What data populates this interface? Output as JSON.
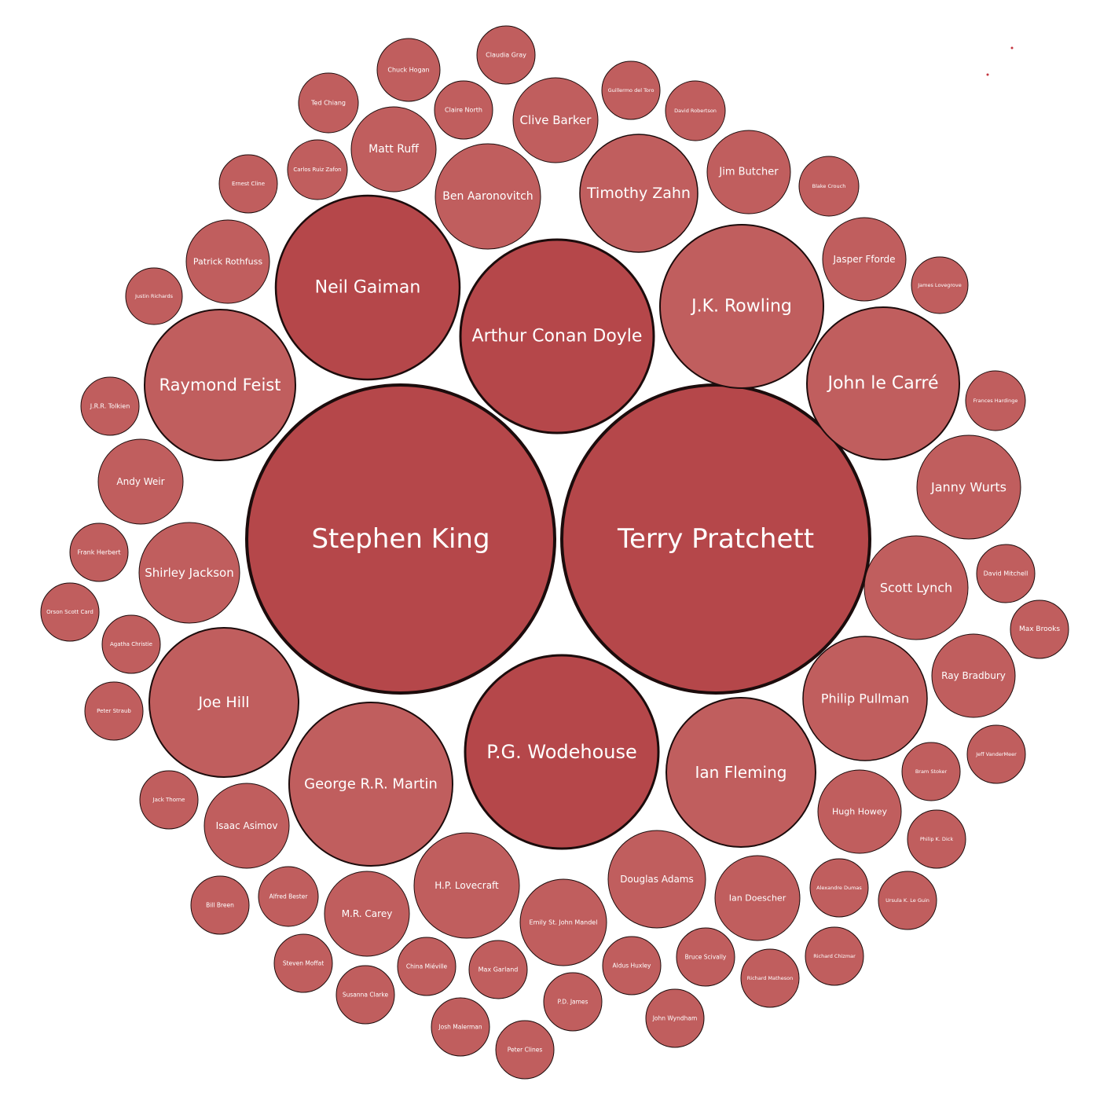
{
  "chart_data": {
    "type": "bubble",
    "title": "",
    "colors": {
      "large": "#b5474a",
      "small": "#c05e5e",
      "stroke": "#1c0c0c",
      "label": "#ffffff"
    },
    "items": [
      {
        "name": "Stephen King",
        "size": 100
      },
      {
        "name": "Terry Pratchett",
        "size": 100
      },
      {
        "name": "Arthur Conan Doyle",
        "size": 40
      },
      {
        "name": "P.G. Wodehouse",
        "size": 40
      },
      {
        "name": "Neil Gaiman",
        "size": 37
      },
      {
        "name": "J.K. Rowling",
        "size": 29
      },
      {
        "name": "John le Carré",
        "size": 24
      },
      {
        "name": "Raymond Feist",
        "size": 24
      },
      {
        "name": "Joe Hill",
        "size": 24
      },
      {
        "name": "Ian Fleming",
        "size": 24
      },
      {
        "name": "George R.R. Martin",
        "size": 28
      },
      {
        "name": "Timothy Zahn",
        "size": 15
      },
      {
        "name": "Philip Pullman",
        "size": 16
      },
      {
        "name": "Shirley Jackson",
        "size": 12
      },
      {
        "name": "Scott Lynch",
        "size": 11
      },
      {
        "name": "Janny Wurts",
        "size": 11
      },
      {
        "name": "Ben Aaronovitch",
        "size": 12
      },
      {
        "name": "Douglas Adams",
        "size": 10
      },
      {
        "name": "H.P. Lovecraft",
        "size": 11
      },
      {
        "name": "Matt Ruff",
        "size": 7
      },
      {
        "name": "Clive Barker",
        "size": 7
      },
      {
        "name": "Jim Butcher",
        "size": 7
      },
      {
        "name": "Jasper Fforde",
        "size": 6
      },
      {
        "name": "Patrick Rothfuss",
        "size": 7
      },
      {
        "name": "Andy Weir",
        "size": 7
      },
      {
        "name": "Isaac Asimov",
        "size": 7
      },
      {
        "name": "M.R. Carey",
        "size": 8
      },
      {
        "name": "Emily St. John Mandel",
        "size": 8
      },
      {
        "name": "Ian Doescher",
        "size": 6
      },
      {
        "name": "Hugh Howey",
        "size": 5
      },
      {
        "name": "Ray Bradbury",
        "size": 5
      },
      {
        "name": "Claudia Gray",
        "size": 3
      },
      {
        "name": "Chuck Hogan",
        "size": 3
      },
      {
        "name": "Ted Chiang",
        "size": 3
      },
      {
        "name": "Claire North",
        "size": 3
      },
      {
        "name": "Guillermo del Toro",
        "size": 3
      },
      {
        "name": "David Robertson",
        "size": 3
      },
      {
        "name": "Carlos Ruiz Zafon",
        "size": 3
      },
      {
        "name": "Ernest Cline",
        "size": 3
      },
      {
        "name": "Blake Crouch",
        "size": 3
      },
      {
        "name": "James Lovegrove",
        "size": 3
      },
      {
        "name": "Justin Richards",
        "size": 3
      },
      {
        "name": "J.R.R. Tolkien",
        "size": 3
      },
      {
        "name": "Frances Hardinge",
        "size": 3
      },
      {
        "name": "David Mitchell",
        "size": 3
      },
      {
        "name": "Frank Herbert",
        "size": 3
      },
      {
        "name": "Max Brooks",
        "size": 3
      },
      {
        "name": "Orson Scott Card",
        "size": 3
      },
      {
        "name": "Agatha Christie",
        "size": 3
      },
      {
        "name": "Peter Straub",
        "size": 3
      },
      {
        "name": "Jeff VanderMeer",
        "size": 3
      },
      {
        "name": "Bram Stoker",
        "size": 3
      },
      {
        "name": "Jack Thorne",
        "size": 3
      },
      {
        "name": "Philip K. Dick",
        "size": 3
      },
      {
        "name": "Bill Breen",
        "size": 3
      },
      {
        "name": "Alfred Bester",
        "size": 3
      },
      {
        "name": "Alexandre Dumas",
        "size": 3
      },
      {
        "name": "Ursula K. Le Guin",
        "size": 3
      },
      {
        "name": "Steven Moffat",
        "size": 3
      },
      {
        "name": "China Miéville",
        "size": 3
      },
      {
        "name": "Max Garland",
        "size": 3
      },
      {
        "name": "Aldus Huxley",
        "size": 3
      },
      {
        "name": "Bruce Scivally",
        "size": 3
      },
      {
        "name": "Richard Chizmar",
        "size": 3
      },
      {
        "name": "Susanna Clarke",
        "size": 3
      },
      {
        "name": "Richard Matheson",
        "size": 3
      },
      {
        "name": "P.D. James",
        "size": 3
      },
      {
        "name": "Josh Malerman",
        "size": 3
      },
      {
        "name": "John Wyndham",
        "size": 3
      },
      {
        "name": "Peter Clines",
        "size": 3
      }
    ]
  }
}
